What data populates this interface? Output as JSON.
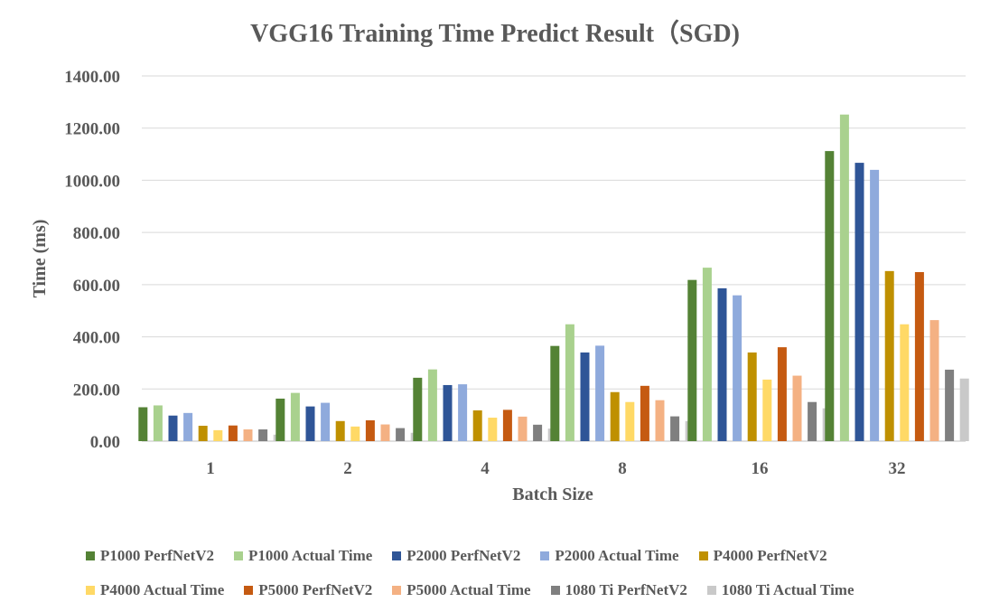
{
  "chart_data": {
    "type": "bar",
    "title": "VGG16 Training Time Predict Result（SGD)",
    "xlabel": "Batch Size",
    "ylabel": "Time (ms)",
    "ylim": [
      0,
      1400
    ],
    "yticks": [
      "0.00",
      "200.00",
      "400.00",
      "600.00",
      "800.00",
      "1000.00",
      "1200.00",
      "1400.00"
    ],
    "grid": true,
    "legend_position": "bottom",
    "categories": [
      "1",
      "2",
      "4",
      "8",
      "16",
      "32"
    ],
    "series": [
      {
        "name": "P1000 PerfNetV2",
        "color": "#548235",
        "values": [
          130,
          163,
          243,
          365,
          618,
          1112
        ]
      },
      {
        "name": "P1000 Actual Time",
        "color": "#A9D18E",
        "values": [
          137,
          185,
          275,
          448,
          665,
          1252
        ]
      },
      {
        "name": "P2000 PerfNetV2",
        "color": "#2F5597",
        "values": [
          98,
          133,
          215,
          340,
          586,
          1067
        ]
      },
      {
        "name": "P2000 Actual Time",
        "color": "#8FAADC",
        "values": [
          108,
          147,
          218,
          366,
          559,
          1040
        ]
      },
      {
        "name": "P4000 PerfNetV2",
        "color": "#BF9000",
        "values": [
          59,
          77,
          118,
          188,
          340,
          652
        ]
      },
      {
        "name": "P4000 Actual Time",
        "color": "#FFD966",
        "values": [
          42,
          56,
          90,
          150,
          236,
          448
        ]
      },
      {
        "name": "P5000 PerfNetV2",
        "color": "#C55A11",
        "values": [
          60,
          80,
          120,
          212,
          360,
          648
        ]
      },
      {
        "name": "P5000 Actual Time",
        "color": "#F4B183",
        "values": [
          45,
          64,
          94,
          157,
          251,
          464
        ]
      },
      {
        "name": "1080 Ti PerfNetV2",
        "color": "#7F7F7F",
        "values": [
          45,
          50,
          63,
          95,
          150,
          274
        ]
      },
      {
        "name": "1080 Ti Actual Time",
        "color": "#C9C9C9",
        "values": [
          25,
          32,
          48,
          77,
          126,
          240
        ]
      }
    ]
  }
}
